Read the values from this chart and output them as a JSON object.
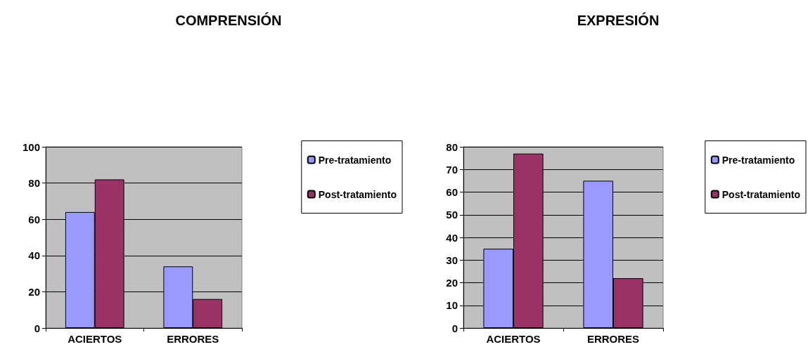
{
  "chart_data": [
    {
      "type": "bar",
      "title": "COMPRENSIÓN",
      "categories": [
        "ACIERTOS",
        "ERRORES"
      ],
      "series": [
        {
          "name": "Pre-tratamiento",
          "color": "#9999ff",
          "values": [
            64,
            34
          ]
        },
        {
          "name": "Post-tratamiento",
          "color": "#993366",
          "values": [
            82,
            16
          ]
        }
      ],
      "ylim": [
        0,
        100
      ],
      "yticks": [
        0,
        20,
        40,
        60,
        80,
        100
      ],
      "grid": "y",
      "legend": "right"
    },
    {
      "type": "bar",
      "title": "EXPRESIÓN",
      "categories": [
        "ACIERTOS",
        "ERRORES"
      ],
      "series": [
        {
          "name": "Pre-tratamiento",
          "color": "#9999ff",
          "values": [
            35,
            65
          ]
        },
        {
          "name": "Post-tratamiento",
          "color": "#993366",
          "values": [
            77,
            22
          ]
        }
      ],
      "ylim": [
        0,
        80
      ],
      "yticks": [
        0,
        10,
        20,
        30,
        40,
        50,
        60,
        70,
        80
      ],
      "grid": "y",
      "legend": "right"
    }
  ]
}
